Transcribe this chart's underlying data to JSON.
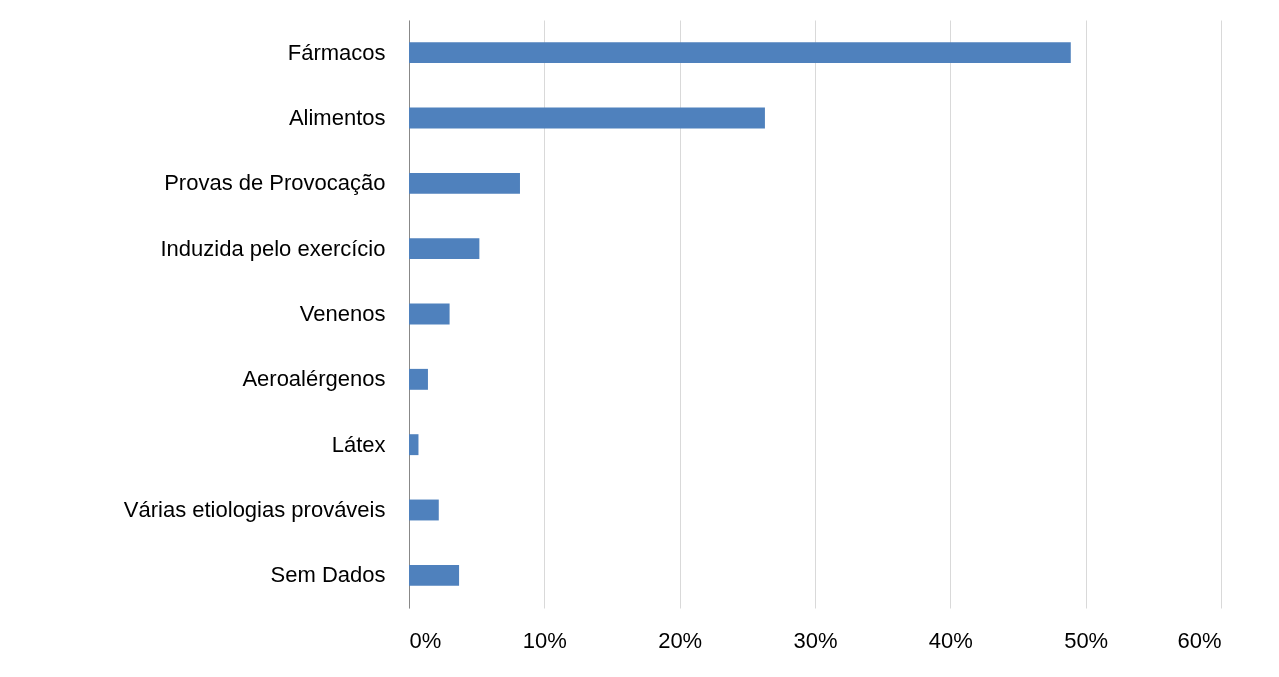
{
  "chart_data": {
    "type": "bar",
    "orientation": "horizontal",
    "categories": [
      "Fármacos",
      "Alimentos",
      "Provas de Provocação",
      "Induzida pelo exercício",
      "Venenos",
      "Aeroalérgenos",
      "Látex",
      "Várias etiologias prováveis",
      "Sem Dados"
    ],
    "values": [
      48.9,
      26.3,
      8.2,
      5.2,
      3.0,
      1.4,
      0.7,
      2.2,
      3.7
    ],
    "color": "#4f81bd",
    "xlim": [
      0,
      60
    ],
    "xticks": [
      {
        "value": 0,
        "label": "0%"
      },
      {
        "value": 10,
        "label": "10%"
      },
      {
        "value": 20,
        "label": "20%"
      },
      {
        "value": 30,
        "label": "30%"
      },
      {
        "value": 40,
        "label": "40%"
      },
      {
        "value": 50,
        "label": "50%"
      },
      {
        "value": 60,
        "label": "60%"
      }
    ],
    "grid": "x"
  }
}
